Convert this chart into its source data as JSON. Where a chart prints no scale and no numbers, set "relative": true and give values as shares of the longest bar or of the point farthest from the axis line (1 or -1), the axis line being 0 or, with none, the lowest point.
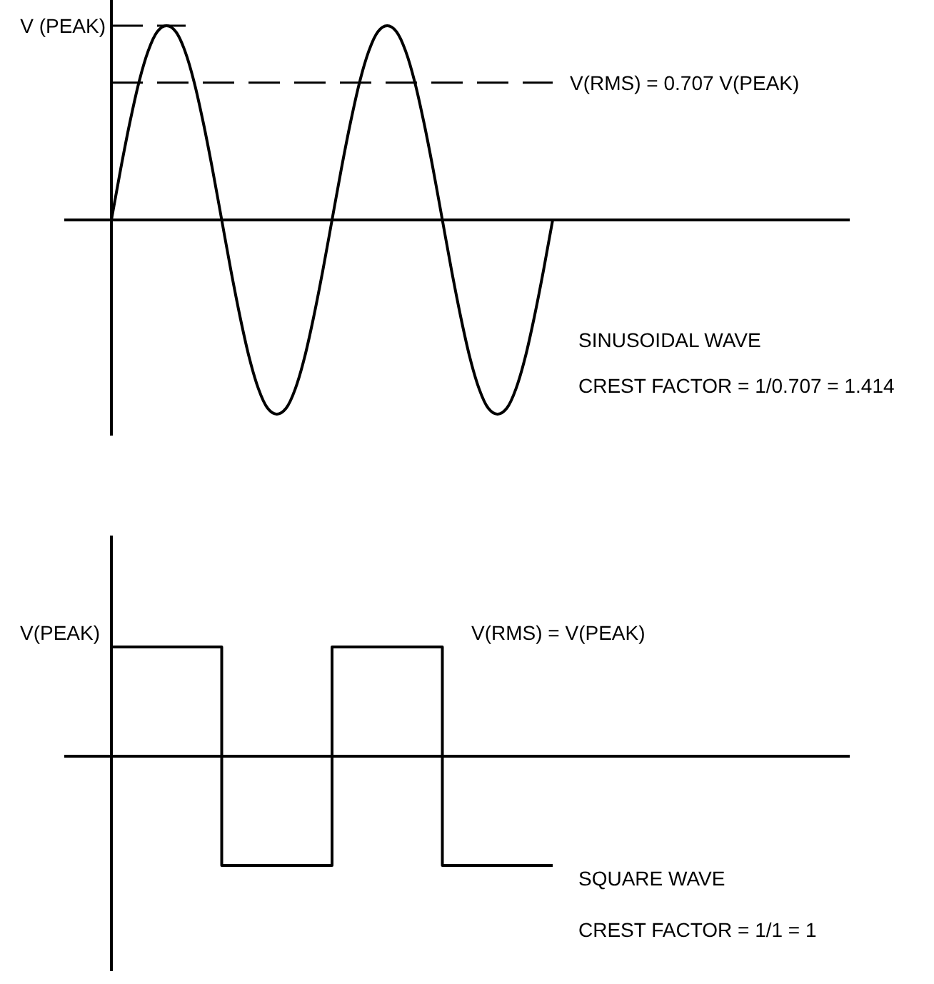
{
  "chart_data": [
    {
      "type": "line",
      "relative": true,
      "categories": [
        null,
        null,
        null,
        null,
        null,
        null,
        null,
        null,
        null,
        null,
        null,
        null,
        null,
        null,
        null,
        null,
        null,
        null,
        null,
        null,
        null,
        null,
        null,
        null,
        null,
        null,
        null,
        null,
        null,
        null,
        null,
        null,
        null,
        null,
        null,
        null,
        null,
        null,
        null,
        null,
        null,
        null,
        null,
        null,
        null,
        null,
        null,
        null,
        null
      ],
      "series": [
        {
          "color": "#000000",
          "values": [
            0,
            0.26,
            0.5,
            0.71,
            0.87,
            0.97,
            1,
            0.97,
            0.87,
            0.71,
            0.5,
            0.26,
            0,
            -0.26,
            -0.5,
            -0.71,
            -0.87,
            -0.97,
            -1,
            -0.97,
            -0.87,
            -0.71,
            -0.5,
            -0.26,
            0,
            0.26,
            0.5,
            0.71,
            0.87,
            0.97,
            1,
            0.97,
            0.87,
            0.71,
            0.5,
            0.26,
            0,
            -0.26,
            -0.5,
            -0.71,
            -0.87,
            -0.97,
            -1,
            -0.97,
            -0.87,
            -0.71,
            -0.5,
            -0.26,
            0
          ]
        }
      ],
      "ref_lines": [
        {
          "axis": "y",
          "value": 1,
          "label": "V (PEAK)",
          "line_style": "dashed"
        },
        {
          "axis": "y",
          "value": 0.707,
          "label": "V(RMS) = 0.707 V(PEAK)",
          "line_style": "dashed"
        }
      ],
      "annotations": [
        "SINUSOIDAL WAVE",
        "CREST FACTOR = 1/0.707 = 1.414"
      ]
    },
    {
      "type": "step",
      "relative": true,
      "categories": [
        null,
        null,
        null,
        null,
        null
      ],
      "series": [
        {
          "color": "#000000",
          "values": [
            1,
            -1,
            1,
            -1,
            -1
          ]
        }
      ],
      "annotations": [
        "V(PEAK)",
        "V(RMS) = V(PEAK)",
        "SQUARE WAVE",
        "CREST FACTOR = 1/1 = 1"
      ]
    }
  ]
}
